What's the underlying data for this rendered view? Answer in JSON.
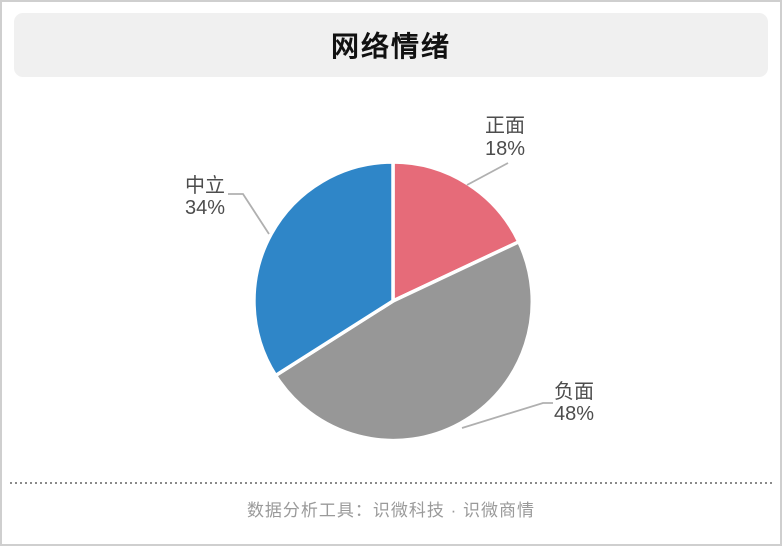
{
  "chart_data": {
    "type": "pie",
    "title": "网络情绪",
    "start_angle_deg": 0,
    "direction": "clockwise",
    "label_position": "outside",
    "border_color": "#ffffff",
    "leader_line_color": "#b0b0b0",
    "slices": [
      {
        "key": "positive",
        "label": "正面",
        "value": 18,
        "pct_label": "18%",
        "color": "#e66b79"
      },
      {
        "key": "negative",
        "label": "负面",
        "value": 48,
        "pct_label": "48%",
        "color": "#979797"
      },
      {
        "key": "neutral",
        "label": "中立",
        "value": 34,
        "pct_label": "34%",
        "color": "#2f86c8"
      }
    ]
  },
  "footer": {
    "credit": "数据分析工具：识微科技 · 识微商情"
  }
}
